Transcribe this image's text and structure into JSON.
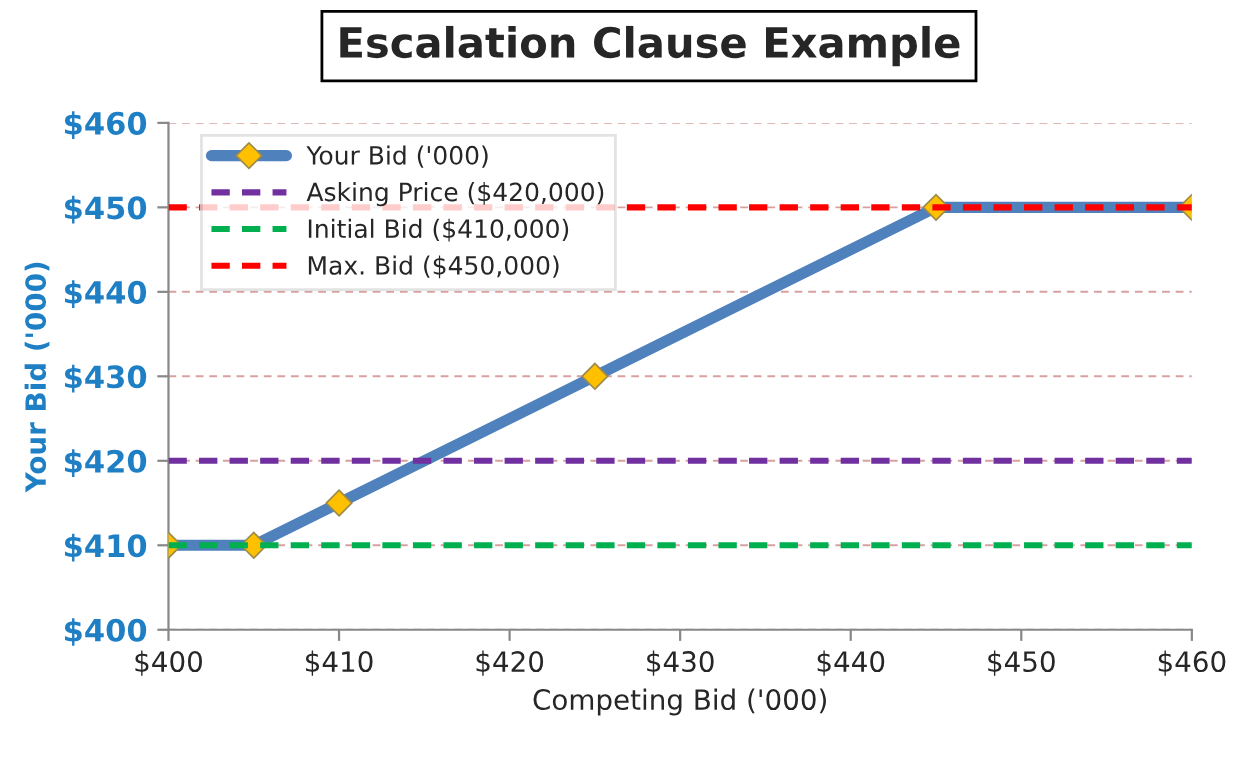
{
  "chart_data": {
    "type": "line",
    "title": "Escalation Clause Example",
    "xlabel": "Competing Bid ('000)",
    "ylabel": "Your Bid ('000)",
    "series": [
      {
        "name": "Your Bid ('000)",
        "color": "#4f81bd",
        "x": [
          400,
          405,
          410,
          425,
          445,
          460
        ],
        "values": [
          410,
          410,
          415,
          430,
          450,
          450
        ],
        "marker": "diamond",
        "line_style": "solid"
      },
      {
        "name": "Asking Price ($420,000)",
        "color": "#7030a0",
        "x": [
          400,
          460
        ],
        "values": [
          420,
          420
        ],
        "line_style": "dashed"
      },
      {
        "name": "Initial Bid ($410,000)",
        "color": "#00b050",
        "x": [
          400,
          460
        ],
        "values": [
          410,
          410
        ],
        "line_style": "dashed"
      },
      {
        "name": "Max. Bid ($450,000)",
        "color": "#ff0000",
        "x": [
          400,
          460
        ],
        "values": [
          450,
          450
        ],
        "line_style": "dashed"
      }
    ],
    "xlim": [
      400,
      460
    ],
    "ylim": [
      400,
      460
    ],
    "xticks": [
      {
        "value": 400,
        "label": "$400"
      },
      {
        "value": 410,
        "label": "$410"
      },
      {
        "value": 420,
        "label": "$420"
      },
      {
        "value": 430,
        "label": "$430"
      },
      {
        "value": 440,
        "label": "$440"
      },
      {
        "value": 450,
        "label": "$450"
      },
      {
        "value": 460,
        "label": "$460"
      }
    ],
    "yticks": [
      {
        "value": 400,
        "label": "$400"
      },
      {
        "value": 410,
        "label": "$410"
      },
      {
        "value": 420,
        "label": "$420"
      },
      {
        "value": 430,
        "label": "$430"
      },
      {
        "value": 440,
        "label": "$440"
      },
      {
        "value": 450,
        "label": "$450"
      },
      {
        "value": 460,
        "label": "$460"
      }
    ],
    "grid": "y",
    "legend": "top left"
  }
}
